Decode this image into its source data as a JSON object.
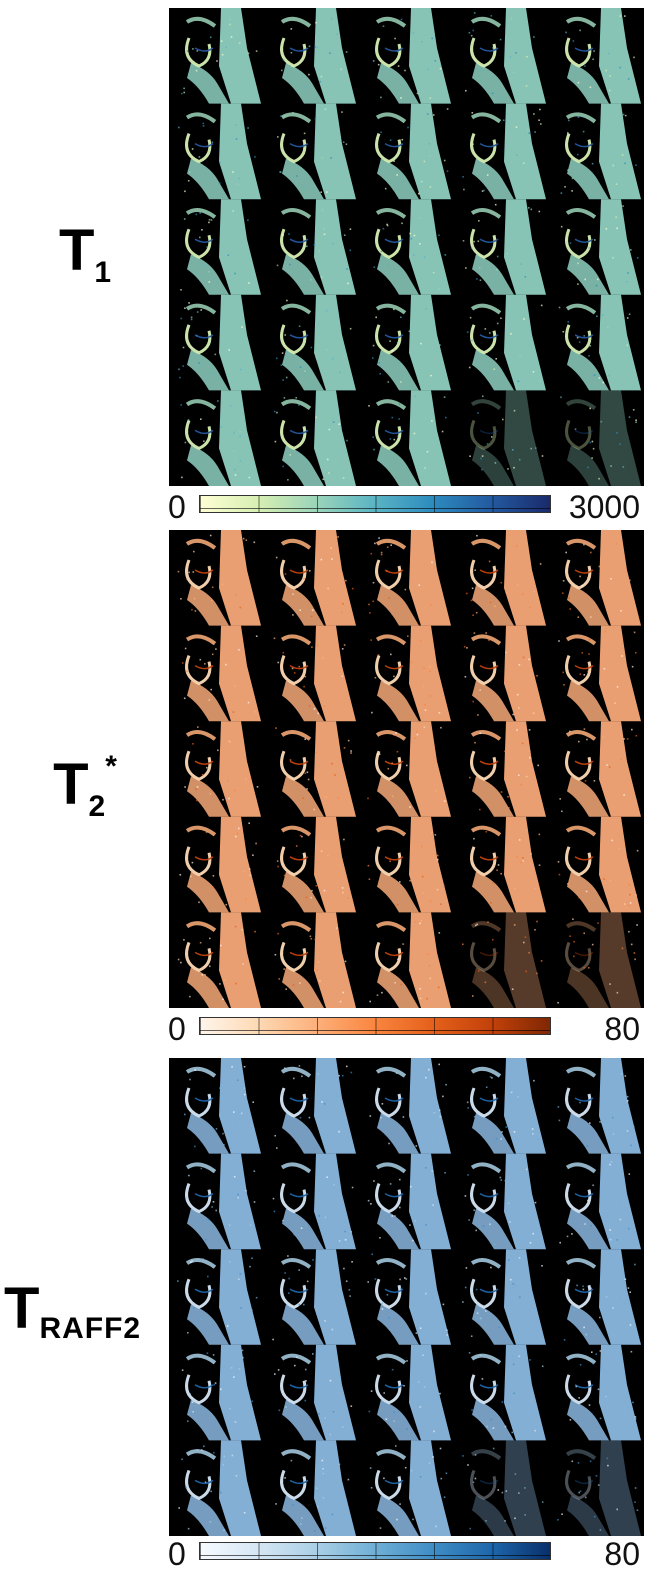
{
  "panels": [
    {
      "label_base": "T",
      "label_sub": "1",
      "label_sup": "",
      "colorbar_min": "0",
      "colorbar_max": "3000",
      "colormap": [
        "#ffffd4",
        "#d6efb3",
        "#9bd4b9",
        "#5ab4c4",
        "#2c8bbe",
        "#2359a0",
        "#1a2a6b"
      ],
      "tissue_color": "#8ecfc0"
    },
    {
      "label_base": "T",
      "label_sub": "2",
      "label_sup": "*",
      "colorbar_min": "0",
      "colorbar_max": "80",
      "colormap": [
        "#fff5eb",
        "#fdd9b4",
        "#fdb07b",
        "#f9853f",
        "#e5601a",
        "#c2410a",
        "#7f2704"
      ],
      "tissue_color": "#f6a878"
    },
    {
      "label_base": "T",
      "label_sub": "RAFF2",
      "label_sup": "",
      "colorbar_min": "0",
      "colorbar_max": "80",
      "colormap": [
        "#f7fbff",
        "#d5e6f4",
        "#aacfe6",
        "#6fafd6",
        "#3f8dc5",
        "#1e66ab",
        "#08306b"
      ],
      "tissue_color": "#8ab8e0"
    }
  ]
}
